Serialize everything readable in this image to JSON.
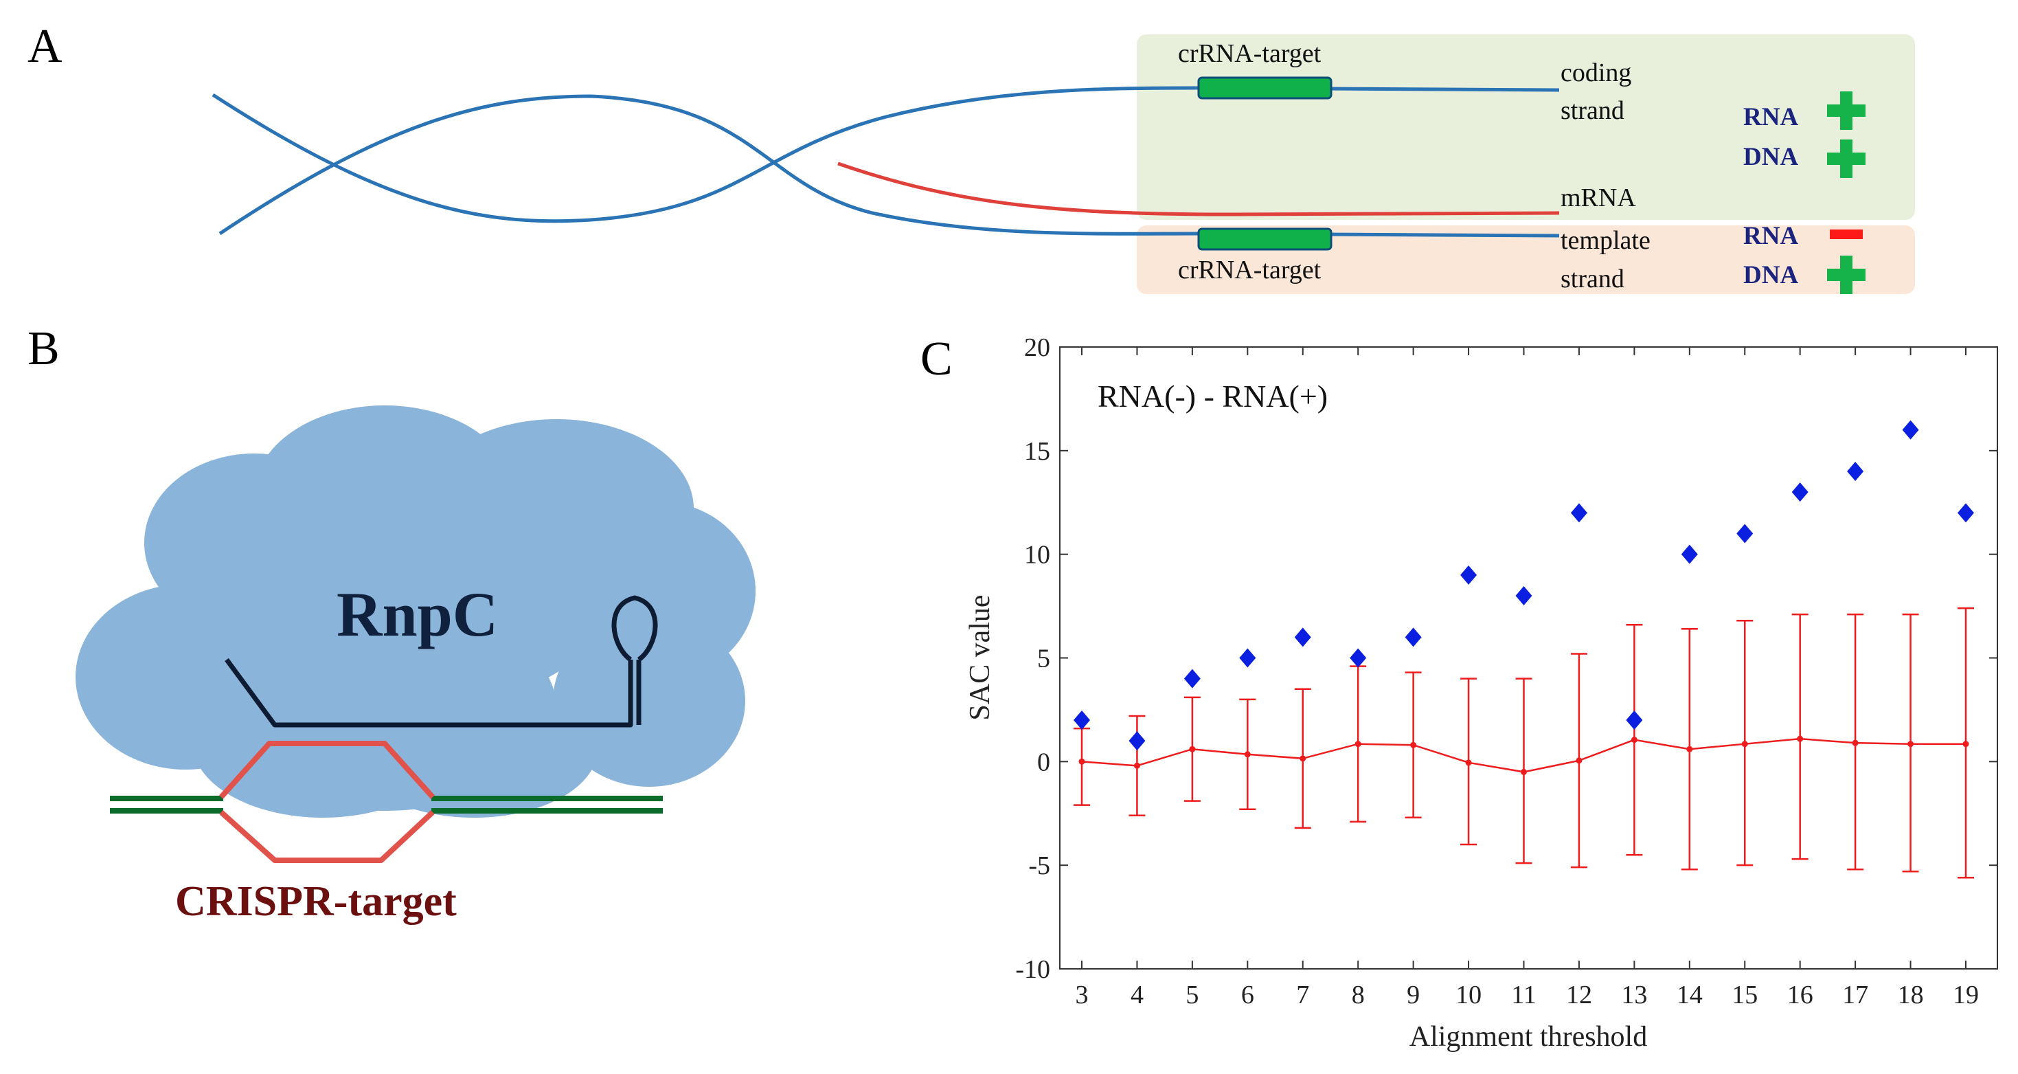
{
  "panels": {
    "A": {
      "letter": "A",
      "label_target_top": "crRNA-target",
      "label_target_bottom": "crRNA-target",
      "label_coding_line1": "coding",
      "label_coding_line2": "strand",
      "label_mrna": "mRNA",
      "label_template_line1": "template",
      "label_template_line2": "strand",
      "legend": [
        {
          "label": "RNA",
          "sign": "plus"
        },
        {
          "label": "DNA",
          "sign": "plus"
        },
        {
          "label": "RNA",
          "sign": "minus"
        },
        {
          "label": "DNA",
          "sign": "plus"
        }
      ],
      "colors": {
        "dna": "#2a73b5",
        "mrna": "#e0403a",
        "target_box": "#10b04a",
        "coding_bg": "#e8f0dc",
        "template_bg": "#fbe7d8",
        "plus": "#16b34a",
        "minus": "#ff1a1a",
        "legend_text": "#1a237e"
      }
    },
    "B": {
      "letter": "B",
      "protein_label": "RnpC",
      "target_label": "CRISPR-target",
      "colors": {
        "cloud": "#8ab4d9",
        "rna": "#0d1b33",
        "dna": "#0b6b2a",
        "bubble": "#e0524a",
        "target_text": "#6b0f0f"
      }
    },
    "C": {
      "letter": "C",
      "annotation": "RNA(-) - RNA(+)",
      "colors": {
        "points": "#0a1fe0",
        "errorbar": "#ee1c1c"
      }
    }
  },
  "chart_data": {
    "type": "scatter",
    "xlabel": "Alignment threshold",
    "ylabel": "SAC value",
    "annotation": "RNA(-) - RNA(+)",
    "xlim": [
      3,
      19
    ],
    "ylim": [
      -10,
      20
    ],
    "x_ticks": [
      3,
      4,
      5,
      6,
      7,
      8,
      9,
      10,
      11,
      12,
      13,
      14,
      15,
      16,
      17,
      18,
      19
    ],
    "y_ticks": [
      -10,
      -5,
      0,
      5,
      10,
      15,
      20
    ],
    "grid": false,
    "series": [
      {
        "marker": "diamond",
        "x": [
          3,
          4,
          5,
          6,
          7,
          8,
          9,
          10,
          11,
          12,
          13,
          14,
          15,
          16,
          17,
          18,
          19
        ],
        "y": [
          2,
          1,
          4,
          5,
          6,
          5,
          6,
          9,
          8,
          12,
          2,
          10,
          11,
          13,
          14,
          16,
          12
        ]
      },
      {
        "marker": "line-errorbar",
        "x": [
          3,
          4,
          5,
          6,
          7,
          8,
          9,
          10,
          11,
          12,
          13,
          14,
          15,
          16,
          17,
          18,
          19
        ],
        "y": [
          0.0,
          -0.2,
          0.6,
          0.35,
          0.15,
          0.85,
          0.8,
          -0.05,
          -0.5,
          0.05,
          1.05,
          0.6,
          0.85,
          1.1,
          0.9,
          0.85,
          0.85
        ],
        "err_low": [
          -2.1,
          -2.6,
          -1.9,
          -2.3,
          -3.2,
          -2.9,
          -2.7,
          -4.0,
          -4.9,
          -5.1,
          -4.5,
          -5.2,
          -5.0,
          -4.7,
          -5.2,
          -5.3,
          -5.6
        ],
        "err_high": [
          1.6,
          2.2,
          3.1,
          3.0,
          3.5,
          4.6,
          4.3,
          4.0,
          4.0,
          5.2,
          6.6,
          6.4,
          6.8,
          7.1,
          7.1,
          7.1,
          7.4
        ]
      }
    ]
  }
}
